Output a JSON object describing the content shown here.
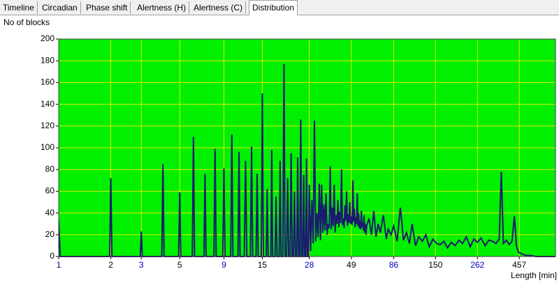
{
  "tabs": {
    "items": [
      "Timeline",
      "Circadian",
      "Phase shift",
      "Alertness (H)",
      "Alertness (C)",
      "Distribution"
    ],
    "active": 5
  },
  "chart_data": {
    "type": "line",
    "y_label": "No of blocks",
    "x_label": "Length [min]",
    "xscale": "log",
    "grid": true,
    "background": "#00f000",
    "grid_color": "#e8e800",
    "color": "#1a1a70",
    "xlim": [
      1,
      740
    ],
    "xticks": [
      1,
      2,
      3,
      5,
      9,
      15,
      28,
      49,
      86,
      150,
      262,
      457
    ],
    "xtick_label_colors": [
      "#000080",
      "#000000",
      "#0000c0",
      "#000000",
      "#0000c0",
      "#000000",
      "#0000c0",
      "#000000",
      "#0000c0",
      "#000000",
      "#0000c0",
      "#000000"
    ],
    "ylim": [
      0,
      200
    ],
    "yticks": [
      0,
      20,
      40,
      60,
      80,
      100,
      120,
      140,
      160,
      180,
      200
    ],
    "x": [
      1,
      1.02,
      1.97,
      2,
      2.03,
      2.96,
      3,
      3.04,
      3.94,
      4,
      4.06,
      4.93,
      5,
      5.07,
      5.91,
      6,
      6.09,
      6.9,
      7,
      7.1,
      7.88,
      8,
      8.12,
      8.87,
      9,
      9.13,
      9.85,
      10,
      10.15,
      10.85,
      11,
      11.15,
      11.8,
      12,
      12.2,
      12.8,
      13,
      13.2,
      13.8,
      14,
      14.2,
      14.8,
      15,
      15.2,
      15.8,
      16,
      16.2,
      16.8,
      17,
      17.2,
      17.75,
      18,
      18.25,
      18.75,
      19,
      19.25,
      19.7,
      20,
      20.3,
      20.7,
      21,
      21.3,
      21.7,
      22,
      22.3,
      22.7,
      23,
      23.3,
      23.7,
      24,
      24.3,
      24.7,
      25,
      25.3,
      25.7,
      26,
      26.3,
      26.7,
      27,
      27.3,
      27.7,
      28,
      28.5,
      29,
      29.5,
      30,
      30.5,
      31,
      31.5,
      32,
      32.5,
      33,
      33.5,
      34,
      34.5,
      35,
      35.5,
      36,
      36.5,
      37,
      37.5,
      38,
      38.5,
      39,
      39.5,
      40,
      40.5,
      41,
      41.5,
      42,
      42.5,
      43,
      43.5,
      44,
      44.5,
      45,
      45.5,
      46,
      46.5,
      47,
      47.5,
      48,
      48.5,
      49,
      49.5,
      50,
      50.5,
      51,
      51.5,
      52,
      52.5,
      53,
      53.5,
      54,
      54.5,
      55,
      55.5,
      56,
      56.5,
      57,
      57.5,
      58,
      58.5,
      59,
      59.5,
      60,
      62,
      64,
      66,
      68,
      70,
      72,
      75,
      78,
      80,
      83,
      86,
      90,
      94,
      98,
      102,
      106,
      110,
      115,
      120,
      126,
      132,
      138,
      145,
      152,
      160,
      168,
      176,
      185,
      195,
      205,
      215,
      226,
      238,
      250,
      262,
      275,
      290,
      305,
      320,
      335,
      350,
      360,
      370,
      385,
      400,
      415,
      428,
      440,
      452,
      465,
      480,
      500,
      530,
      570,
      620,
      680,
      740
    ],
    "values": [
      33,
      0,
      0,
      72,
      0,
      0,
      23,
      0,
      0,
      85,
      0,
      0,
      59,
      0,
      0,
      110,
      0,
      0,
      76,
      0,
      0,
      99,
      0,
      0,
      81,
      0,
      0,
      112,
      0,
      0,
      96,
      0,
      0,
      88,
      0,
      0,
      101,
      0,
      0,
      76,
      0,
      0,
      150,
      0,
      0,
      62,
      0,
      0,
      98,
      0,
      0,
      55,
      0,
      0,
      88,
      0,
      0,
      177,
      0,
      0,
      72,
      0,
      0,
      95,
      0,
      0,
      60,
      0,
      0,
      91,
      0,
      0,
      126,
      0,
      0,
      75,
      0,
      0,
      90,
      0,
      0,
      66,
      5,
      52,
      12,
      125,
      14,
      40,
      18,
      67,
      15,
      66,
      22,
      48,
      24,
      58,
      20,
      30,
      26,
      83,
      25,
      45,
      28,
      66,
      22,
      38,
      30,
      52,
      27,
      41,
      31,
      80,
      29,
      35,
      26,
      47,
      33,
      60,
      28,
      39,
      31,
      50,
      30,
      37,
      29,
      70,
      32,
      44,
      27,
      36,
      30,
      58,
      28,
      40,
      26,
      33,
      25,
      42,
      27,
      31,
      24,
      38,
      22,
      30,
      20,
      28,
      35,
      20,
      42,
      18,
      30,
      22,
      38,
      16,
      25,
      20,
      28,
      14,
      45,
      15,
      22,
      12,
      30,
      10,
      18,
      14,
      20,
      9,
      16,
      12,
      11,
      14,
      8,
      13,
      10,
      15,
      12,
      18,
      9,
      16,
      13,
      17,
      10,
      15,
      14,
      12,
      16,
      78,
      12,
      15,
      11,
      14,
      37,
      10,
      4,
      3,
      2,
      1,
      1,
      0,
      0,
      0,
      0
    ]
  }
}
